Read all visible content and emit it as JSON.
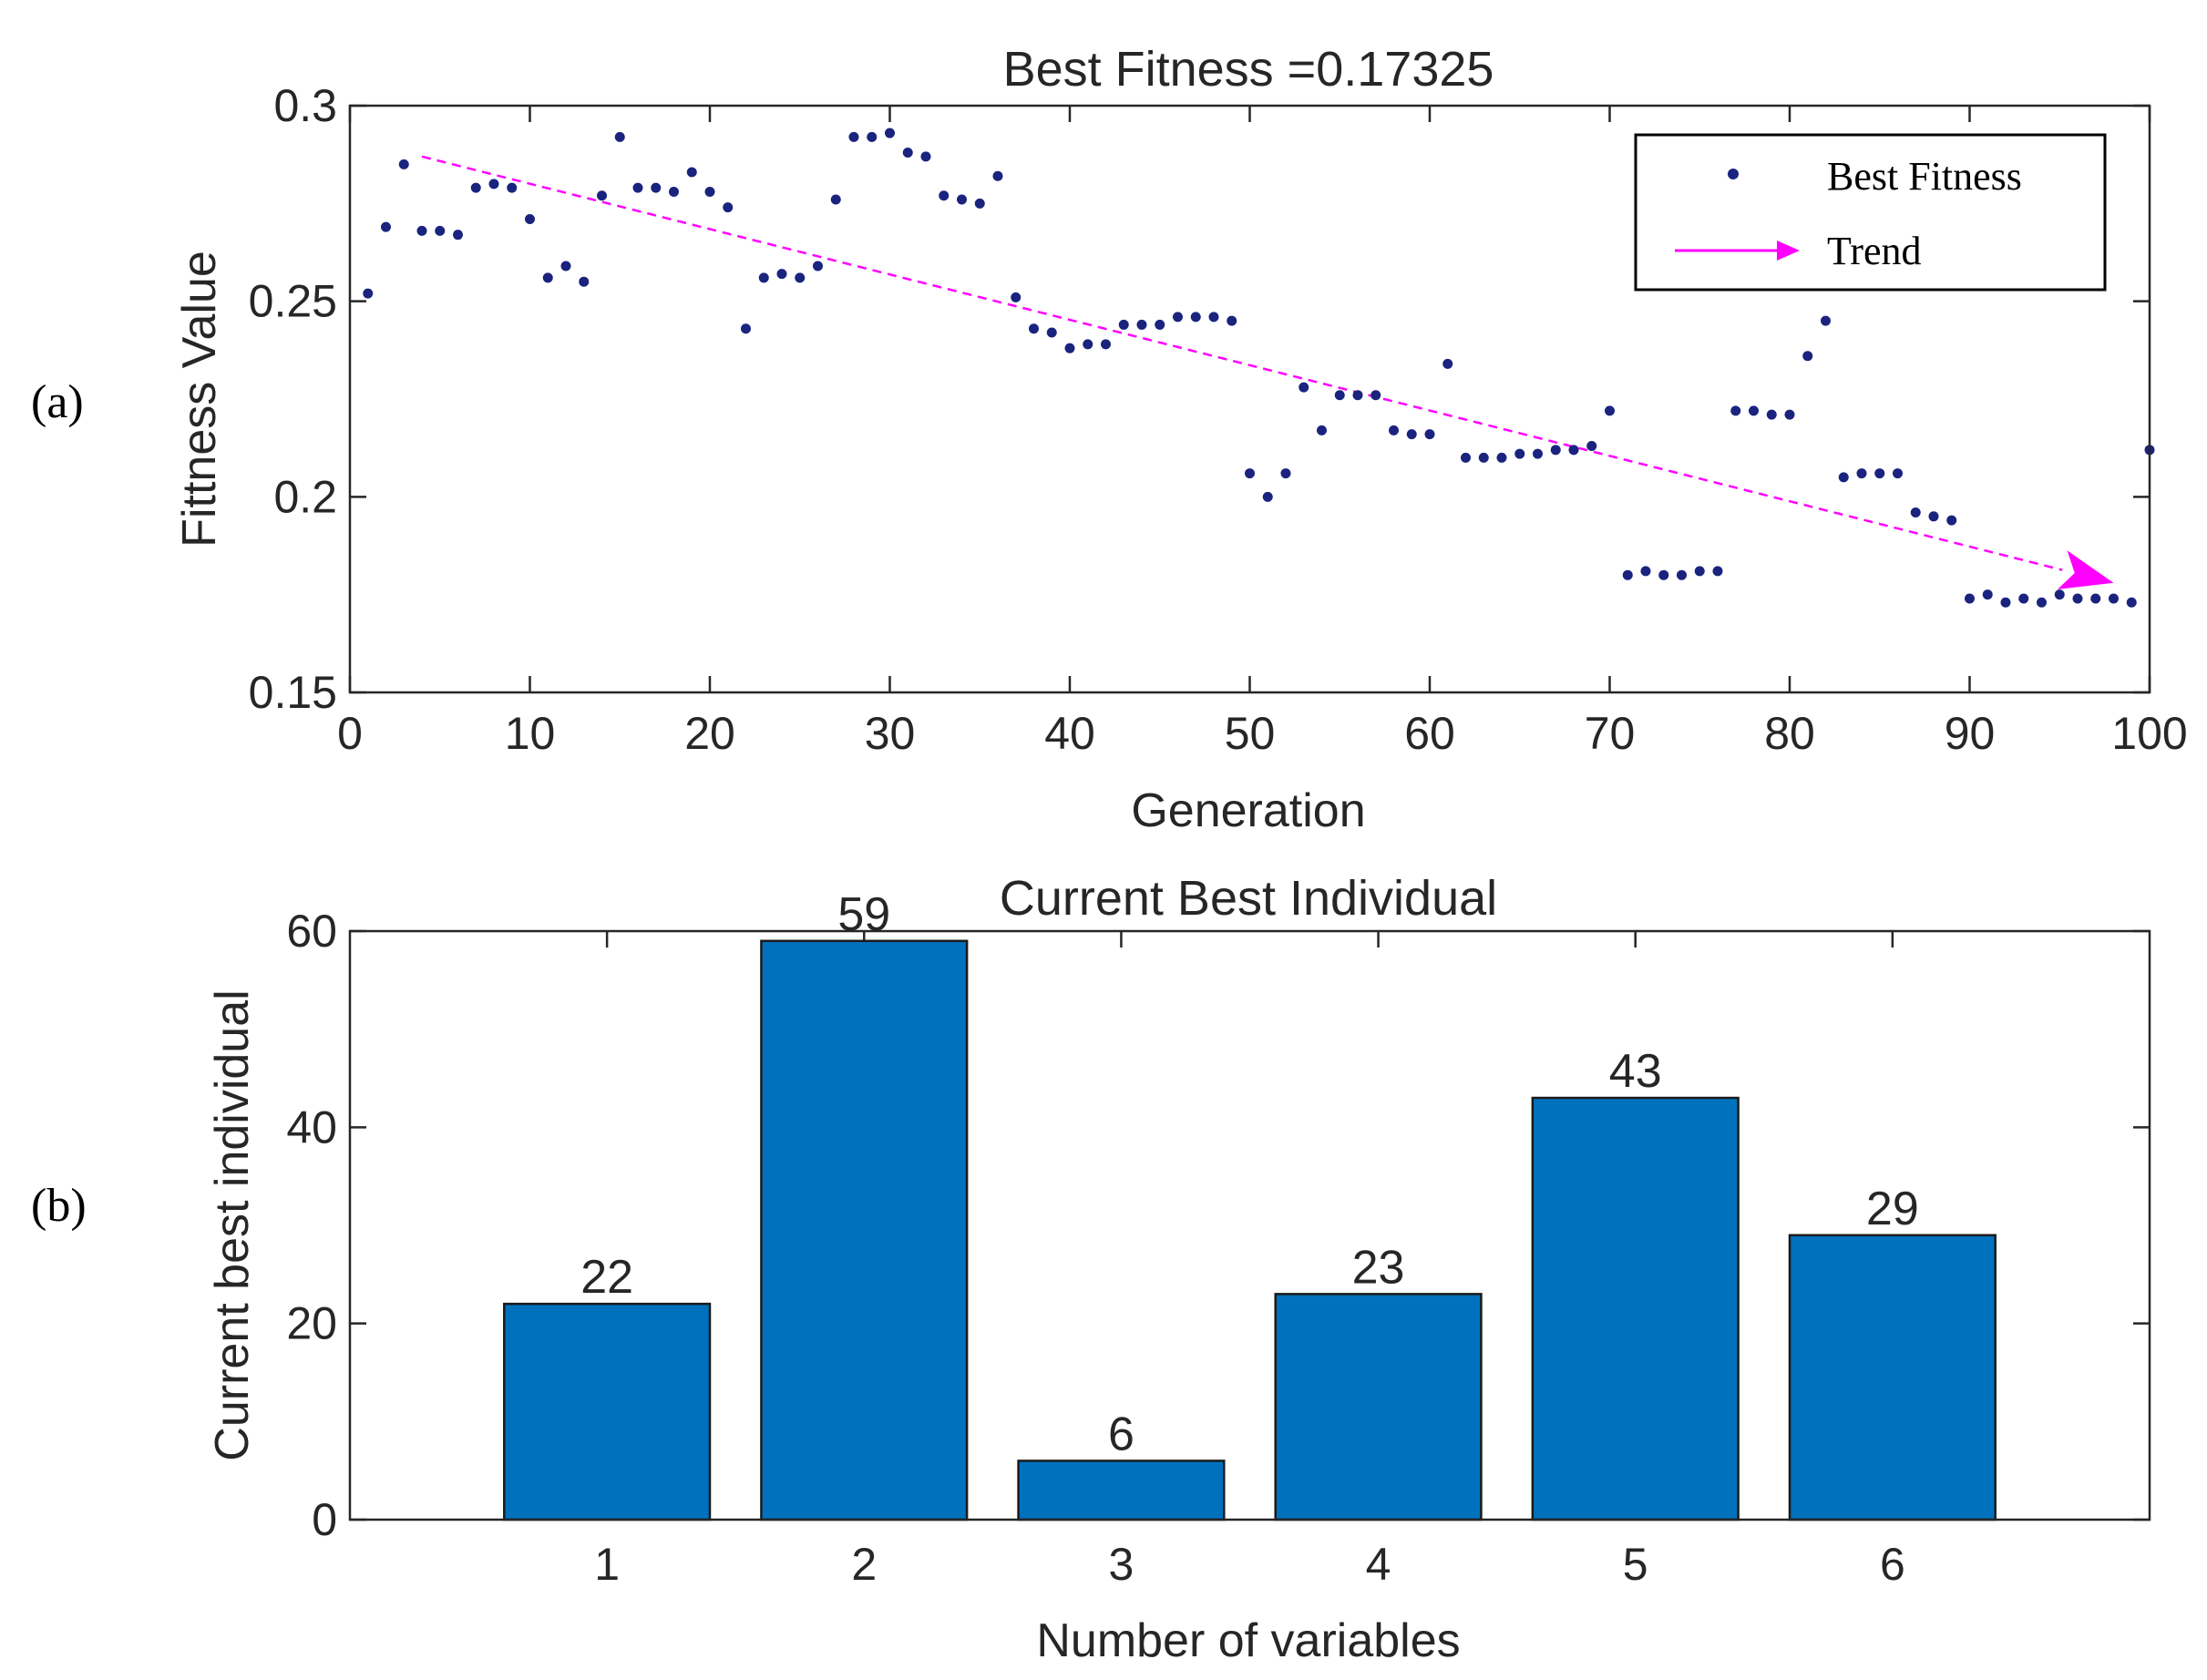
{
  "chart_data": [
    {
      "panel_label": "(a)",
      "type": "scatter",
      "title": "Best Fitness =0.17325",
      "xlabel": "Generation",
      "ylabel": "Fittness Value",
      "xlim": [
        0,
        100
      ],
      "ylim": [
        0.15,
        0.3
      ],
      "xticks": [
        "0",
        "10",
        "20",
        "30",
        "40",
        "50",
        "60",
        "70",
        "80",
        "90",
        "100"
      ],
      "yticks": [
        "0.15",
        "0.2",
        "0.25",
        "0.3"
      ],
      "grid": false,
      "legend": {
        "position": "top-right",
        "entries": [
          "Best Fitness",
          "Trend"
        ]
      },
      "series": [
        {
          "name": "Best Fitness",
          "color": "#1a237e",
          "x": [
            1,
            2,
            3,
            4,
            5,
            6,
            7,
            8,
            9,
            10,
            11,
            12,
            13,
            14,
            15,
            16,
            17,
            18,
            19,
            20,
            21,
            22,
            23,
            24,
            25,
            26,
            27,
            28,
            29,
            30,
            31,
            32,
            33,
            34,
            35,
            36,
            37,
            38,
            39,
            40,
            41,
            42,
            43,
            44,
            45,
            46,
            47,
            48,
            49,
            50,
            51,
            52,
            53,
            54,
            55,
            56,
            57,
            58,
            59,
            60,
            61,
            62,
            63,
            64,
            65,
            66,
            67,
            68,
            69,
            70,
            71,
            72,
            73,
            74,
            75,
            76,
            77,
            78,
            79,
            80,
            81,
            82,
            83,
            84,
            85,
            86,
            87,
            88,
            89,
            90,
            91,
            92,
            93,
            94,
            95,
            96,
            97,
            98,
            99,
            100
          ],
          "y": [
            0.252,
            0.269,
            0.285,
            0.268,
            0.268,
            0.267,
            0.279,
            0.28,
            0.279,
            0.271,
            0.256,
            0.259,
            0.255,
            0.277,
            0.292,
            0.279,
            0.279,
            0.278,
            0.283,
            0.278,
            0.274,
            0.243,
            0.256,
            0.257,
            0.256,
            0.259,
            0.276,
            0.292,
            0.292,
            0.293,
            0.288,
            0.287,
            0.277,
            0.276,
            0.275,
            0.282,
            0.251,
            0.243,
            0.242,
            0.238,
            0.239,
            0.239,
            0.244,
            0.244,
            0.244,
            0.246,
            0.246,
            0.246,
            0.245,
            0.206,
            0.2,
            0.206,
            0.228,
            0.217,
            0.226,
            0.226,
            0.226,
            0.217,
            0.216,
            0.216,
            0.234,
            0.21,
            0.21,
            0.21,
            0.211,
            0.211,
            0.212,
            0.212,
            0.213,
            0.222,
            0.18,
            0.181,
            0.18,
            0.18,
            0.181,
            0.181,
            0.222,
            0.222,
            0.221,
            0.221,
            0.236,
            0.245,
            0.205,
            0.206,
            0.206,
            0.206,
            0.196,
            0.195,
            0.194,
            0.174,
            0.175,
            0.173,
            0.174,
            0.173,
            0.175,
            0.174,
            0.174,
            0.174,
            0.173,
            0.212
          ]
        },
        {
          "name": "Trend",
          "color": "#ff00ff",
          "x": [
            4,
            98
          ],
          "y": [
            0.287,
            0.178
          ]
        }
      ]
    },
    {
      "panel_label": "(b)",
      "type": "bar",
      "title": "Current Best Individual",
      "xlabel": "Number of variables",
      "ylabel": "Current best individual",
      "categories": [
        "1",
        "2",
        "3",
        "4",
        "5",
        "6"
      ],
      "values": [
        22,
        59,
        6,
        23,
        43,
        29
      ],
      "data_labels": [
        "22",
        "59",
        "6",
        "23",
        "43",
        "29"
      ],
      "xlim": [
        0,
        7
      ],
      "ylim": [
        0,
        60
      ],
      "yticks": [
        "0",
        "20",
        "40",
        "60"
      ],
      "grid": false,
      "bar_color": "#0072bd"
    }
  ]
}
